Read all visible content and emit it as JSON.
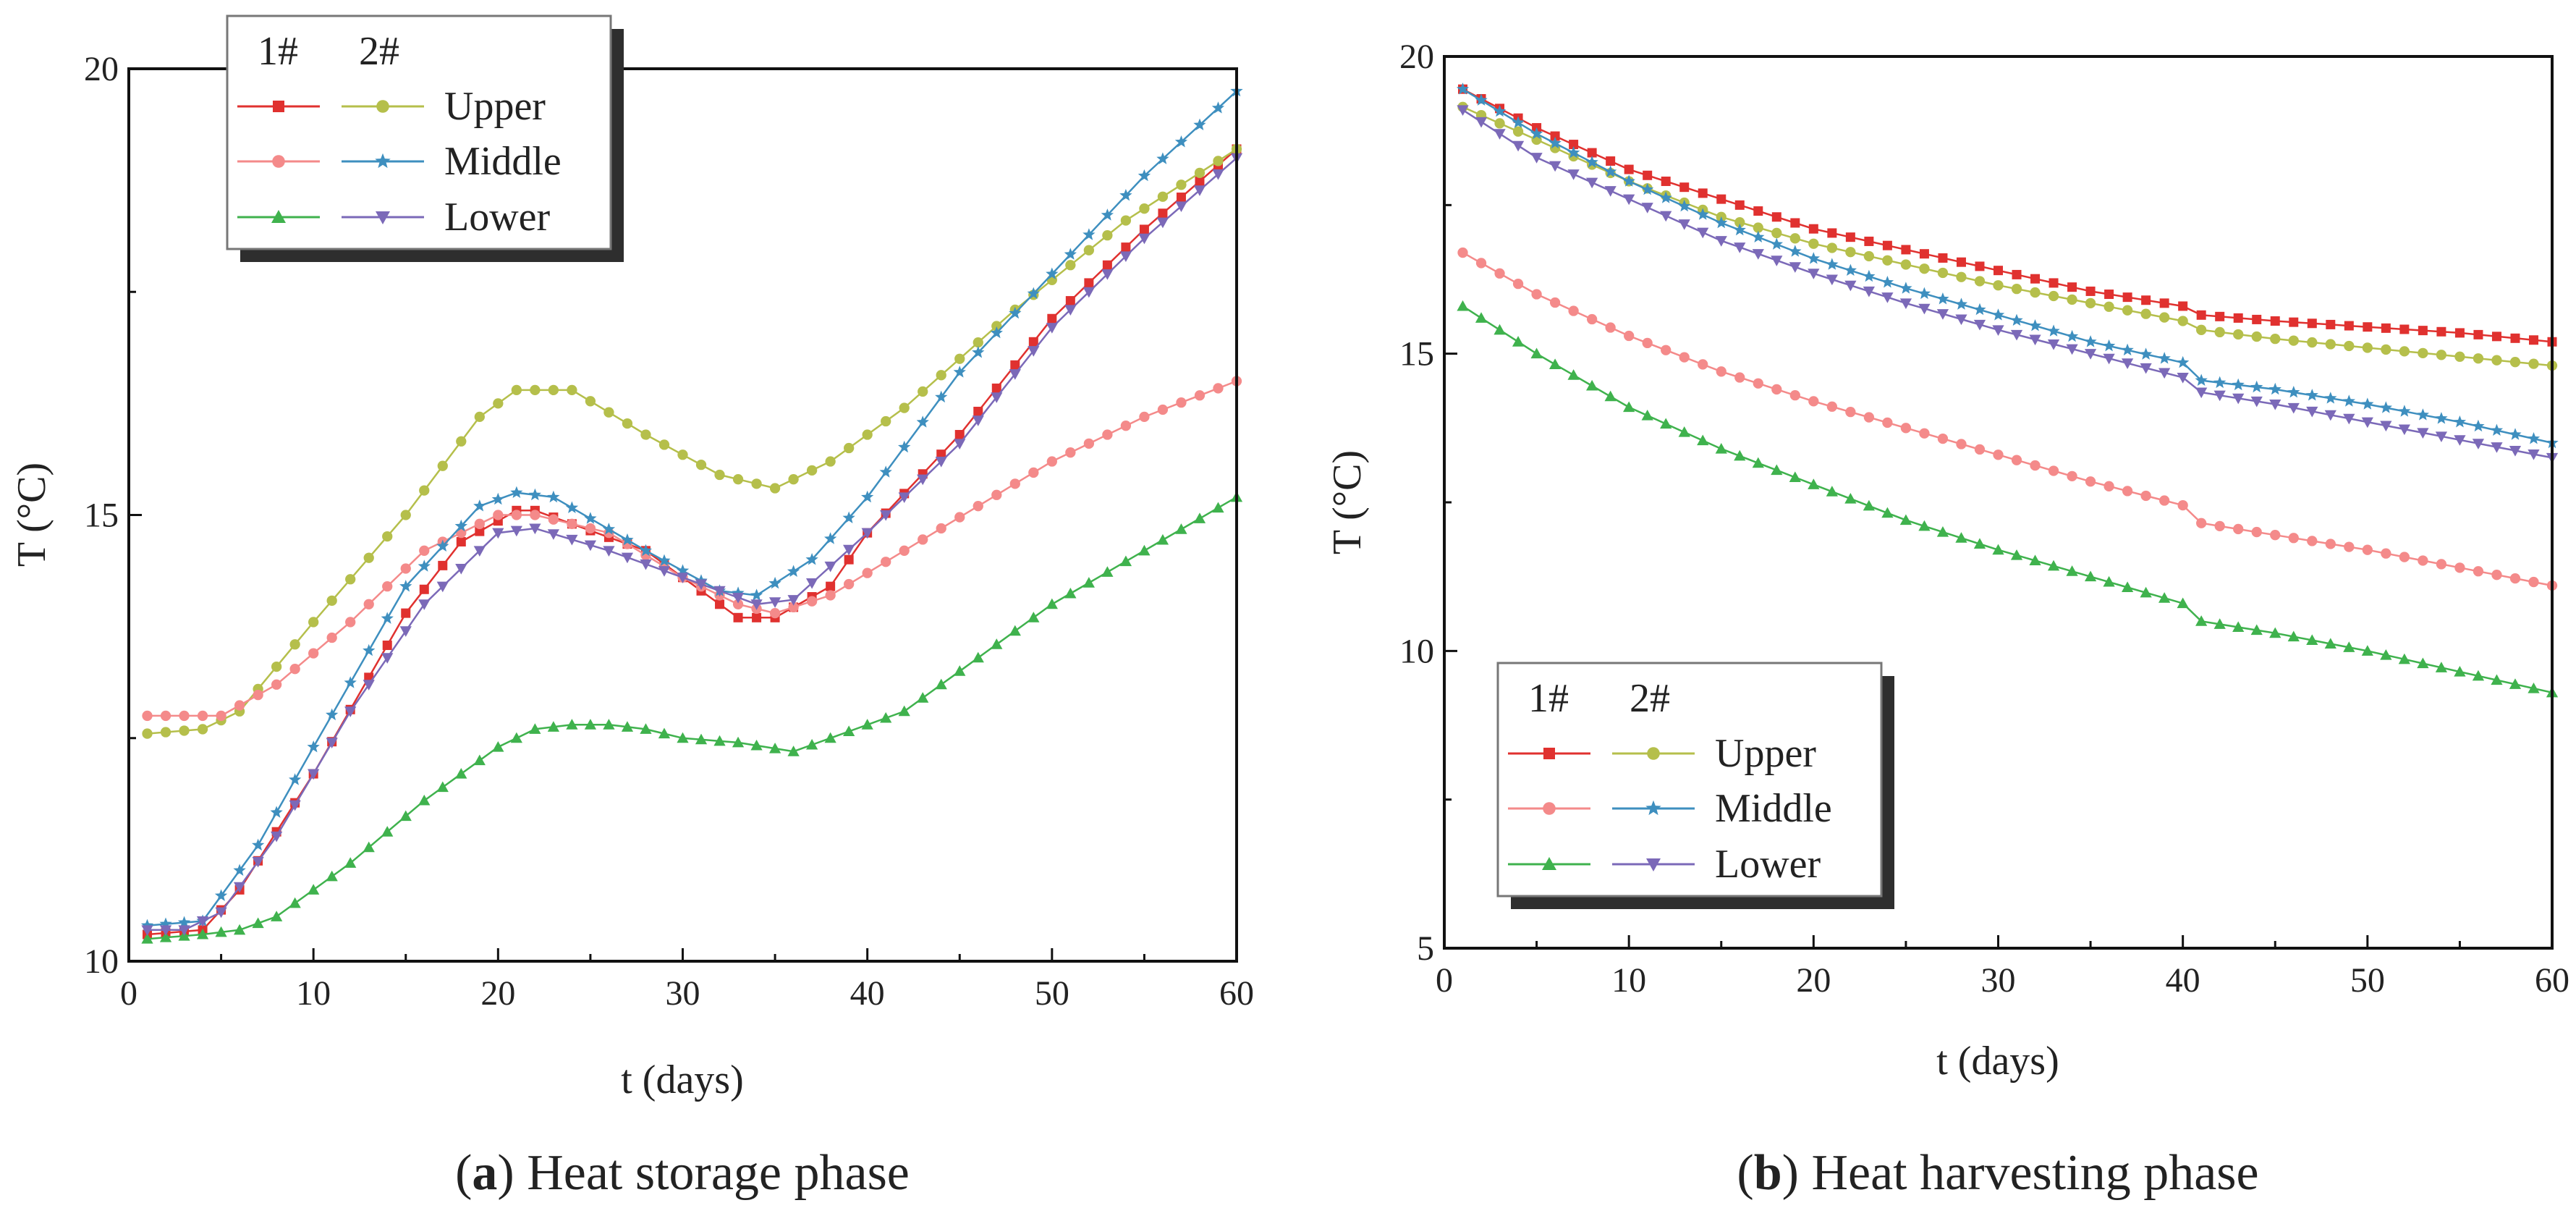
{
  "figure": {
    "caption_a_letter": "a",
    "caption_a_text": "Heat storage phase",
    "caption_b_letter": "b",
    "caption_b_text": "Heat harvesting phase"
  },
  "legend": {
    "header_1": "1#",
    "header_2": "2#",
    "rows": [
      "Upper",
      "Middle",
      "Lower"
    ]
  },
  "colors": {
    "1#-Upper": "#e0312f",
    "2#-Upper": "#b5bf4b",
    "1#-Middle": "#f48a8a",
    "2#-Middle": "#3e8fbf",
    "1#-Lower": "#3fb24d",
    "2#-Lower": "#7b69b8"
  },
  "markers": {
    "1#-Upper": "square-icon",
    "2#-Upper": "circle-icon",
    "1#-Middle": "circle-icon",
    "2#-Middle": "star-icon",
    "1#-Lower": "triangle-up-icon",
    "2#-Lower": "triangle-down-icon"
  },
  "chart_data": [
    {
      "type": "line",
      "panel": "a",
      "title": "",
      "xlabel": "t (days)",
      "ylabel": "T (°C)",
      "xlim": [
        0,
        60
      ],
      "ylim": [
        10,
        20
      ],
      "xticks": [
        0,
        10,
        20,
        30,
        40,
        50,
        60
      ],
      "yticks": [
        10,
        15,
        20
      ],
      "legend_position": "top-left",
      "series": [
        {
          "name": "1#-Upper",
          "x": [
            1,
            4,
            6,
            10,
            15,
            18,
            21,
            22,
            28,
            33,
            35,
            38,
            40,
            45,
            50,
            55,
            60
          ],
          "y": [
            10.3,
            10.35,
            10.8,
            12.1,
            13.9,
            14.7,
            15.05,
            15.05,
            14.6,
            13.85,
            13.85,
            14.2,
            14.8,
            15.9,
            17.2,
            18.2,
            19.1
          ]
        },
        {
          "name": "2#-Upper",
          "x": [
            1,
            4,
            6,
            10,
            15,
            19,
            21,
            24,
            28,
            32,
            35,
            38,
            42,
            48,
            54,
            60
          ],
          "y": [
            12.55,
            12.6,
            12.8,
            13.8,
            15.0,
            16.1,
            16.4,
            16.4,
            15.9,
            15.45,
            15.3,
            15.6,
            16.2,
            17.3,
            18.3,
            19.1
          ]
        },
        {
          "name": "1#-Middle",
          "x": [
            1,
            3,
            5,
            8,
            12,
            16,
            20,
            22,
            26,
            30,
            33,
            35,
            38,
            42,
            46,
            50,
            55,
            60
          ],
          "y": [
            12.75,
            12.75,
            12.75,
            13.1,
            13.8,
            14.6,
            15.0,
            15.0,
            14.8,
            14.3,
            14.0,
            13.9,
            14.1,
            14.6,
            15.1,
            15.6,
            16.1,
            16.5
          ]
        },
        {
          "name": "2#-Middle",
          "x": [
            1,
            4,
            7,
            10,
            15,
            19,
            21,
            23,
            28,
            32,
            34,
            37,
            40,
            45,
            50,
            55,
            60
          ],
          "y": [
            10.4,
            10.45,
            11.3,
            12.4,
            14.2,
            15.1,
            15.25,
            15.2,
            14.6,
            14.15,
            14.1,
            14.5,
            15.2,
            16.6,
            17.7,
            18.8,
            19.75
          ]
        },
        {
          "name": "1#-Lower",
          "x": [
            1,
            4,
            6,
            8,
            12,
            16,
            20,
            22,
            24,
            26,
            28,
            30,
            33,
            36,
            38,
            42,
            46,
            50,
            55,
            60
          ],
          "y": [
            10.25,
            10.3,
            10.35,
            10.5,
            11.1,
            11.8,
            12.4,
            12.6,
            12.65,
            12.65,
            12.6,
            12.5,
            12.45,
            12.35,
            12.5,
            12.8,
            13.4,
            14.0,
            14.6,
            15.2
          ]
        },
        {
          "name": "2#-Lower",
          "x": [
            1,
            3,
            5,
            8,
            12,
            16,
            20,
            22,
            26,
            30,
            34,
            36,
            40,
            45,
            50,
            55,
            60
          ],
          "y": [
            10.35,
            10.35,
            10.55,
            11.4,
            12.8,
            14.0,
            14.8,
            14.85,
            14.6,
            14.3,
            14.0,
            14.05,
            14.8,
            15.8,
            17.1,
            18.1,
            19.0
          ]
        }
      ]
    },
    {
      "type": "line",
      "panel": "b",
      "title": "",
      "xlabel": "t (days)",
      "ylabel": "T (°C)",
      "xlim": [
        0,
        60
      ],
      "ylim": [
        5,
        20
      ],
      "xticks": [
        0,
        10,
        20,
        30,
        40,
        50,
        60
      ],
      "yticks": [
        5,
        10,
        15,
        20
      ],
      "legend_position": "bottom-left",
      "series": [
        {
          "name": "1#-Upper",
          "x": [
            1,
            5,
            10,
            15,
            20,
            25,
            30,
            35,
            40,
            41,
            45,
            50,
            55,
            60
          ],
          "y": [
            19.45,
            18.8,
            18.1,
            17.6,
            17.1,
            16.75,
            16.4,
            16.05,
            15.8,
            15.65,
            15.55,
            15.45,
            15.35,
            15.2
          ]
        },
        {
          "name": "2#-Upper",
          "x": [
            1,
            5,
            10,
            15,
            20,
            25,
            30,
            35,
            40,
            41,
            45,
            50,
            55,
            60
          ],
          "y": [
            19.15,
            18.6,
            17.9,
            17.3,
            16.85,
            16.5,
            16.15,
            15.85,
            15.55,
            15.4,
            15.25,
            15.1,
            14.95,
            14.8
          ]
        },
        {
          "name": "1#-Middle",
          "x": [
            1,
            5,
            10,
            15,
            20,
            25,
            30,
            35,
            40,
            41,
            45,
            50,
            55,
            60
          ],
          "y": [
            16.7,
            16.0,
            15.3,
            14.7,
            14.2,
            13.75,
            13.3,
            12.85,
            12.45,
            12.15,
            11.95,
            11.7,
            11.4,
            11.1
          ]
        },
        {
          "name": "2#-Middle",
          "x": [
            1,
            5,
            10,
            15,
            20,
            25,
            30,
            35,
            40,
            41,
            45,
            50,
            55,
            60
          ],
          "y": [
            19.45,
            18.7,
            17.9,
            17.2,
            16.6,
            16.1,
            15.65,
            15.2,
            14.85,
            14.55,
            14.4,
            14.15,
            13.85,
            13.5
          ]
        },
        {
          "name": "1#-Lower",
          "x": [
            1,
            5,
            10,
            15,
            20,
            25,
            30,
            35,
            40,
            41,
            45,
            50,
            55,
            60
          ],
          "y": [
            15.8,
            15.0,
            14.1,
            13.4,
            12.8,
            12.2,
            11.7,
            11.25,
            10.8,
            10.5,
            10.3,
            10.0,
            9.65,
            9.3
          ]
        },
        {
          "name": "2#-Lower",
          "x": [
            1,
            5,
            10,
            15,
            20,
            25,
            30,
            35,
            40,
            41,
            45,
            50,
            55,
            60
          ],
          "y": [
            19.1,
            18.3,
            17.6,
            16.9,
            16.35,
            15.85,
            15.4,
            15.0,
            14.6,
            14.35,
            14.15,
            13.85,
            13.55,
            13.25
          ]
        }
      ]
    }
  ]
}
